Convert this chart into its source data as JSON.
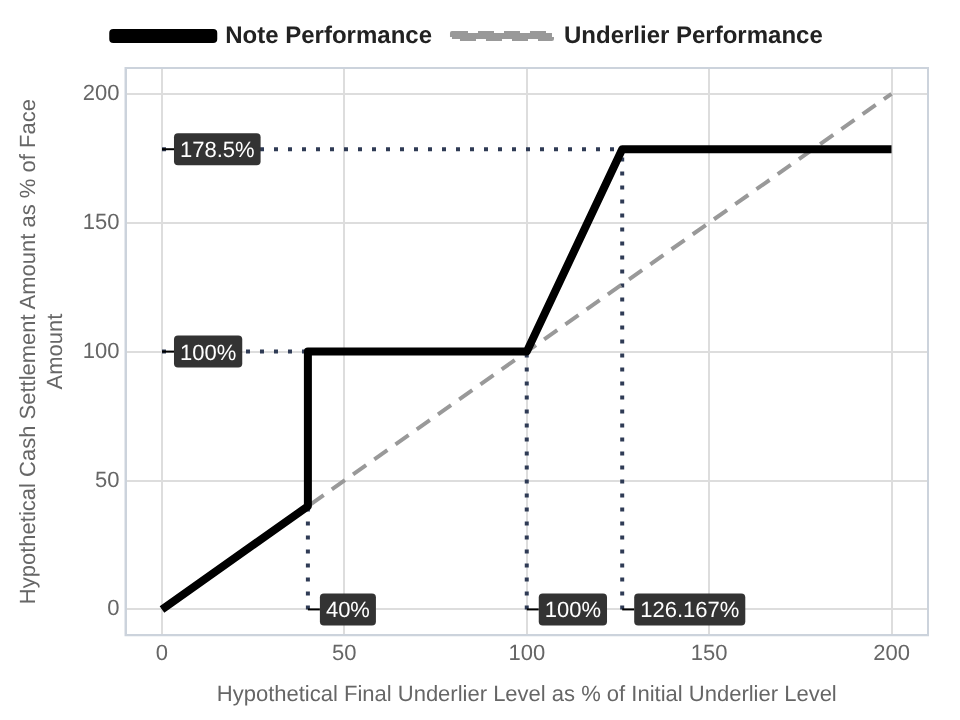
{
  "chart_data": {
    "type": "line",
    "xlabel": "Hypothetical Final Underlier Level as % of Initial Underlier Level",
    "ylabel": "Hypothetical Cash Settlement Amount as % of Face Amount",
    "xlim": [
      -10,
      210
    ],
    "ylim": [
      -10,
      210
    ],
    "xticks": [
      0,
      50,
      100,
      150,
      200
    ],
    "yticks": [
      0,
      50,
      100,
      150,
      200
    ],
    "grid": true,
    "legend": "top",
    "marker": "none",
    "series": [
      {
        "name": "Note Performance",
        "color": "#000000",
        "line_style": "solid",
        "x": [
          0,
          40,
          40,
          100,
          126.167,
          200
        ],
        "values": [
          0,
          40,
          100,
          100,
          178.5,
          178.5
        ]
      },
      {
        "name": "Underlier Performance",
        "color": "#999999",
        "line_style": "dashed",
        "x": [
          0,
          200
        ],
        "values": [
          0,
          200
        ]
      },
      {
        "color": "#2f3b55",
        "line_style": "dotted",
        "x": [
          0,
          126.167
        ],
        "values": [
          178.5,
          178.5
        ]
      },
      {
        "color": "#2f3b55",
        "line_style": "dotted",
        "x": [
          126.167,
          126.167
        ],
        "values": [
          0,
          178.5
        ]
      },
      {
        "color": "#2f3b55",
        "line_style": "dotted",
        "x": [
          0,
          40
        ],
        "values": [
          100,
          100
        ]
      },
      {
        "color": "#2f3b55",
        "line_style": "dotted",
        "x": [
          40,
          40
        ],
        "values": [
          0,
          40
        ]
      },
      {
        "color": "#2f3b55",
        "line_style": "dotted",
        "x": [
          100,
          100
        ],
        "values": [
          0,
          100
        ]
      }
    ],
    "annotations": [
      {
        "text": "178.5%",
        "x": 0,
        "y": 178.5
      },
      {
        "text": "100%",
        "x": 0,
        "y": 100
      },
      {
        "text": "40%",
        "x": 40,
        "y": 0
      },
      {
        "text": "100%",
        "x": 100,
        "y": 0
      },
      {
        "text": "126.167%",
        "x": 126.167,
        "y": 0
      }
    ]
  }
}
